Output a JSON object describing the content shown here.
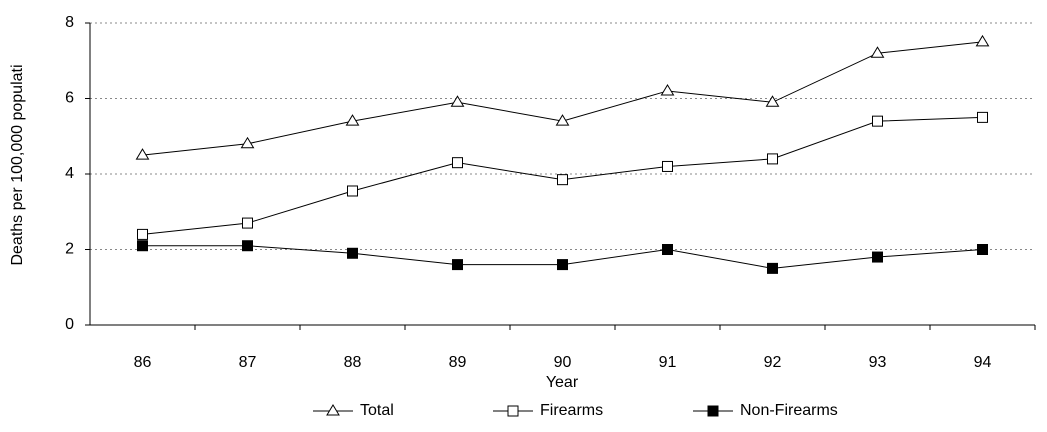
{
  "chart_data": {
    "type": "line",
    "y_label": "Deaths per 100,000 populati",
    "x_label": "Year",
    "categories": [
      "86",
      "87",
      "88",
      "89",
      "90",
      "91",
      "92",
      "93",
      "94"
    ],
    "series": [
      {
        "name": "Total",
        "color": "#000000",
        "marker": "triangle-open",
        "values": [
          4.5,
          4.8,
          5.4,
          5.9,
          5.4,
          6.2,
          5.9,
          7.2,
          7.5
        ]
      },
      {
        "name": "Firearms",
        "color": "#000000",
        "marker": "square-open",
        "values": [
          2.4,
          2.7,
          3.55,
          4.3,
          3.85,
          4.2,
          4.4,
          5.4,
          5.5
        ]
      },
      {
        "name": "Non-Firearms",
        "color": "#000000",
        "marker": "square-filled",
        "values": [
          2.1,
          2.1,
          1.9,
          1.6,
          1.6,
          2.0,
          1.5,
          1.8,
          2.0
        ]
      }
    ],
    "ylim": [
      0,
      8
    ],
    "yticks": [
      0,
      2,
      4,
      6,
      8
    ],
    "grid": true,
    "legend": "bottom"
  }
}
